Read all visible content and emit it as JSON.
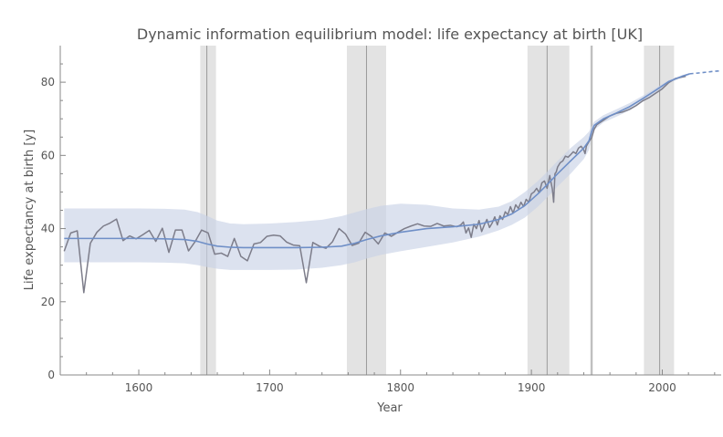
{
  "chart_data": {
    "type": "line",
    "title": "Dynamic information equilibrium model: life expectancy at birth [UK]",
    "xlabel": "Year",
    "ylabel": "Life expectancy at birth [y]",
    "xlim": [
      1540,
      2045
    ],
    "ylim": [
      0,
      90
    ],
    "x_ticks": [
      1600,
      1700,
      1800,
      1900,
      2000
    ],
    "y_ticks": [
      0,
      20,
      40,
      60,
      80
    ],
    "grid": false,
    "legend": "none",
    "shaded_bands": [
      {
        "from": 1647,
        "to": 1659,
        "center": 1652
      },
      {
        "from": 1759,
        "to": 1789,
        "center": 1774
      },
      {
        "from": 1897,
        "to": 1929,
        "center": 1912
      },
      {
        "from": 1945,
        "to": 1947,
        "center": 1946
      },
      {
        "from": 1986,
        "to": 2009,
        "center": 1998
      }
    ],
    "series": [
      {
        "kind": "data",
        "color": "#7d7d8a",
        "x": [
          1543,
          1548,
          1553,
          1558,
          1563,
          1568,
          1573,
          1578,
          1583,
          1588,
          1593,
          1598,
          1603,
          1608,
          1613,
          1618,
          1623,
          1628,
          1633,
          1638,
          1643,
          1648,
          1653,
          1658,
          1663,
          1668,
          1673,
          1678,
          1683,
          1688,
          1693,
          1698,
          1703,
          1708,
          1713,
          1718,
          1723,
          1728,
          1733,
          1738,
          1743,
          1748,
          1753,
          1758,
          1763,
          1768,
          1773,
          1778,
          1783,
          1788,
          1793,
          1798,
          1803,
          1808,
          1813,
          1818,
          1823,
          1828,
          1833,
          1838,
          1843,
          1846,
          1848,
          1850,
          1852,
          1854,
          1856,
          1858,
          1860,
          1862,
          1864,
          1866,
          1868,
          1870,
          1872,
          1874,
          1876,
          1878,
          1880,
          1882,
          1884,
          1886,
          1888,
          1890,
          1892,
          1894,
          1896,
          1898,
          1900,
          1902,
          1904,
          1906,
          1908,
          1910,
          1912,
          1914,
          1916,
          1917,
          1918,
          1919,
          1920,
          1922,
          1924,
          1926,
          1928,
          1930,
          1932,
          1934,
          1936,
          1938,
          1940,
          1941,
          1942,
          1944,
          1946,
          1948,
          1950,
          1955,
          1960,
          1965,
          1970,
          1975,
          1980,
          1985,
          1990,
          1995,
          2000,
          2005,
          2010,
          2015,
          2018
        ],
        "y": [
          33.8,
          38.8,
          39.4,
          22.5,
          36.0,
          39.0,
          40.7,
          41.5,
          42.6,
          36.7,
          38.0,
          37.2,
          38.3,
          39.5,
          36.5,
          40.1,
          33.5,
          39.6,
          39.6,
          33.9,
          36.4,
          39.6,
          38.8,
          33.0,
          33.3,
          32.4,
          37.3,
          32.4,
          31.2,
          35.8,
          36.2,
          37.9,
          38.2,
          38.0,
          36.3,
          35.5,
          35.3,
          25.2,
          36.2,
          35.2,
          34.6,
          36.4,
          40.0,
          38.5,
          35.4,
          36.0,
          39.0,
          37.8,
          35.8,
          38.8,
          37.9,
          39.0,
          40.0,
          40.7,
          41.3,
          40.7,
          40.6,
          41.4,
          40.7,
          40.9,
          40.5,
          41.0,
          41.8,
          38.8,
          40.2,
          37.6,
          41.2,
          40.0,
          42.2,
          39.2,
          41.0,
          42.5,
          40.3,
          41.5,
          43.2,
          41.0,
          43.5,
          42.5,
          44.6,
          43.8,
          46.0,
          44.2,
          46.5,
          45.5,
          47.2,
          46.0,
          48.0,
          47.2,
          49.5,
          50.0,
          51.0,
          49.8,
          52.5,
          53.0,
          51.0,
          54.5,
          50.8,
          47.2,
          55.0,
          55.5,
          56.8,
          58.0,
          58.5,
          59.8,
          59.5,
          60.2,
          61.0,
          60.5,
          62.0,
          62.5,
          61.5,
          60.5,
          62.5,
          63.8,
          64.8,
          67.2,
          68.4,
          69.6,
          70.8,
          71.5,
          71.9,
          72.6,
          73.6,
          74.9,
          75.8,
          77.0,
          78.2,
          79.9,
          81.0,
          81.4,
          81.6
        ]
      },
      {
        "kind": "model",
        "color": "#6f8fc7",
        "x": [
          1543,
          1560,
          1580,
          1600,
          1620,
          1635,
          1645,
          1652,
          1660,
          1670,
          1680,
          1700,
          1720,
          1740,
          1755,
          1765,
          1774,
          1785,
          1800,
          1820,
          1840,
          1860,
          1875,
          1885,
          1895,
          1905,
          1912,
          1920,
          1930,
          1940,
          1944,
          1946,
          1948,
          1955,
          1965,
          1975,
          1985,
          1995,
          2005,
          2015,
          2021
        ],
        "y": [
          37.3,
          37.3,
          37.3,
          37.3,
          37.2,
          37.0,
          36.5,
          35.8,
          35.2,
          34.9,
          34.8,
          34.8,
          34.8,
          34.9,
          35.2,
          36.0,
          37.0,
          38.0,
          39.0,
          40.0,
          40.5,
          41.2,
          42.5,
          44.0,
          46.3,
          49.5,
          52.0,
          55.0,
          58.5,
          62.0,
          64.0,
          66.5,
          68.2,
          70.0,
          71.6,
          73.3,
          75.5,
          77.8,
          80.2,
          81.6,
          82.3
        ]
      },
      {
        "kind": "forecast",
        "color": "#6f8fc7",
        "dashed": true,
        "x": [
          2021,
          2030,
          2040,
          2045
        ],
        "y": [
          82.3,
          82.6,
          83.0,
          83.1
        ]
      }
    ],
    "band": {
      "color": "#c9d3e6",
      "x": [
        1543,
        1560,
        1580,
        1600,
        1620,
        1635,
        1645,
        1652,
        1660,
        1670,
        1680,
        1700,
        1720,
        1740,
        1755,
        1765,
        1774,
        1785,
        1800,
        1820,
        1840,
        1860,
        1875,
        1885,
        1895,
        1905,
        1912,
        1920,
        1930,
        1940,
        1944,
        1946,
        1948,
        1955,
        1965,
        1975,
        1985,
        1995,
        2005,
        2015,
        2021
      ],
      "upper": [
        45.5,
        45.5,
        45.5,
        45.5,
        45.4,
        45.2,
        44.5,
        43.5,
        42.2,
        41.4,
        41.2,
        41.4,
        41.8,
        42.4,
        43.4,
        44.4,
        45.3,
        46.2,
        46.8,
        46.5,
        45.5,
        45.2,
        46.0,
        47.5,
        50.0,
        53.0,
        55.5,
        58.5,
        62.0,
        65.0,
        66.5,
        68.0,
        69.2,
        71.0,
        72.6,
        74.3,
        76.3,
        78.4,
        80.6,
        81.9,
        82.5
      ],
      "lower": [
        30.8,
        30.8,
        30.8,
        30.8,
        30.7,
        30.5,
        30.0,
        29.5,
        29.0,
        28.7,
        28.7,
        28.7,
        28.8,
        29.3,
        30.0,
        30.8,
        31.8,
        32.8,
        33.8,
        35.0,
        36.2,
        37.8,
        39.5,
        41.0,
        43.0,
        46.0,
        48.5,
        51.5,
        55.0,
        59.0,
        61.5,
        65.0,
        67.0,
        69.0,
        70.6,
        72.3,
        74.6,
        77.1,
        79.7,
        81.3,
        82.0
      ]
    }
  }
}
